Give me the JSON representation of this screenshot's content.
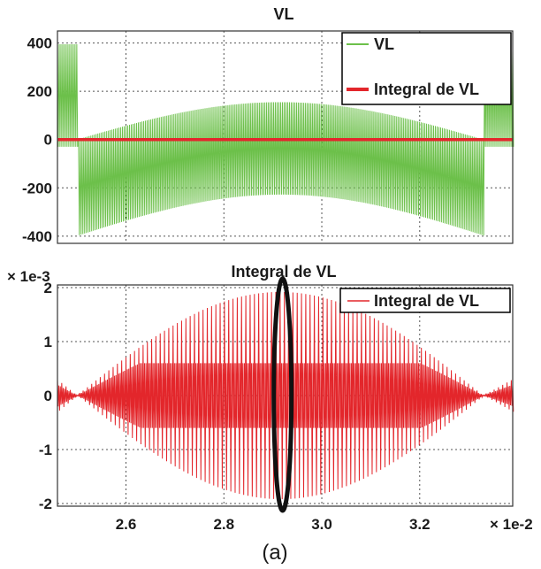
{
  "caption": "(a)",
  "chart_data": [
    {
      "type": "line",
      "title": "VL",
      "xlim": [
        0.0246,
        0.0339
      ],
      "ylim": [
        -430,
        450
      ],
      "yticks": [
        -400,
        -200,
        0,
        200,
        400
      ],
      "ytick_labels": [
        "-400",
        "-200",
        "0",
        "200",
        "400"
      ],
      "grid": true,
      "legend_position": "top-right",
      "series": [
        {
          "name": "VL",
          "color": "#6cc04a",
          "style": "pwm",
          "description_values": {
            "x": [
              0.0246,
              0.025,
              0.025,
              0.0292,
              0.0333,
              0.0333,
              0.0339
            ],
            "envelope_pos": [
              395,
              395,
              0,
              155,
              0,
              370,
              370
            ],
            "envelope_neg": [
              -30,
              -30,
              -398,
              -228,
              -398,
              -30,
              -30
            ]
          }
        },
        {
          "name": "Integral de VL",
          "color": "#e3262b",
          "style": "line",
          "x": [
            0.0246,
            0.0339
          ],
          "y": [
            0,
            0
          ]
        }
      ]
    },
    {
      "type": "line",
      "title": "Integral de VL",
      "y_multiplier": "× 1e-3",
      "x_multiplier": "× 1e-2",
      "xlim": [
        0.0246,
        0.0339
      ],
      "ylim": [
        -2.05,
        2.05
      ],
      "yticks": [
        -2,
        -1,
        0,
        1,
        2
      ],
      "ytick_labels": [
        "-2",
        "-1",
        "0",
        "1",
        "2"
      ],
      "xticks": [
        0.026,
        0.028,
        0.03,
        0.032
      ],
      "xtick_labels": [
        "2.6",
        "2.8",
        "3.0",
        "3.2"
      ],
      "grid": true,
      "legend_position": "top-right",
      "series": [
        {
          "name": "Integral de VL",
          "color": "#e3262b",
          "style": "pwm",
          "envelope": {
            "x": [
              0.0246,
              0.025,
              0.0292,
              0.0333,
              0.0339
            ],
            "amplitude": [
              0.3,
              0.0,
              1.92,
              0.0,
              0.3
            ],
            "inner_band": 0.6
          }
        }
      ],
      "annotation": {
        "type": "ellipse",
        "x": 0.0292
      }
    }
  ]
}
